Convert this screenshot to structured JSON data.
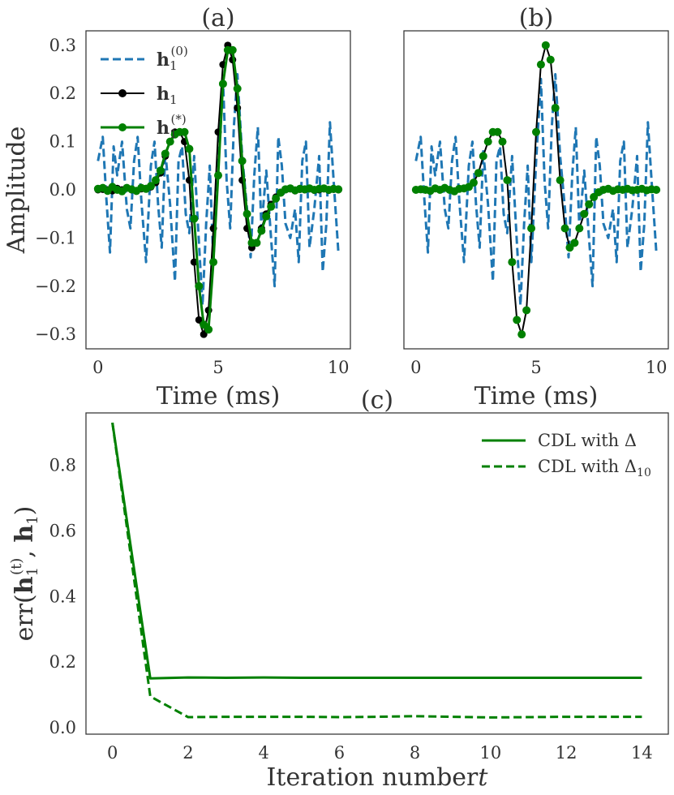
{
  "colors": {
    "initial": "#1f77b4",
    "true": "#000000",
    "estimate": "#008000",
    "cdl": "#008000",
    "axis": "#333333"
  },
  "chart_data": [
    {
      "id": "a",
      "type": "line",
      "title": "(a)",
      "xlabel": "Time (ms)",
      "ylabel": "Amplitude",
      "xlim": [
        -0.5,
        10.5
      ],
      "ylim": [
        -0.33,
        0.33
      ],
      "xticks": [
        0,
        5,
        10
      ],
      "xtick_labels": [
        "0",
        "5",
        "10"
      ],
      "yticks": [
        -0.3,
        -0.2,
        -0.1,
        0.0,
        0.1,
        0.2,
        0.3
      ],
      "ytick_labels": [
        "−0.3",
        "−0.2",
        "−0.1",
        "0.0",
        "0.1",
        "0.2",
        "0.3"
      ],
      "legend": {
        "location": "upper-left",
        "entries": [
          {
            "base": "h",
            "sub": "1",
            "sup": "(0)",
            "series": "initial"
          },
          {
            "base": "h",
            "sub": "1",
            "sup": "",
            "series": "true"
          },
          {
            "base": "h",
            "sub": "1",
            "sup": "(*)",
            "series": "estimate"
          }
        ]
      },
      "series": [
        {
          "name": "initial",
          "style": "dashed",
          "color": "#1f77b4",
          "markers": false,
          "x": [
            0,
            0.2,
            0.35,
            0.5,
            0.65,
            0.8,
            1.0,
            1.2,
            1.35,
            1.5,
            1.65,
            1.8,
            2.0,
            2.2,
            2.35,
            2.5,
            2.65,
            2.8,
            3.0,
            3.2,
            3.35,
            3.5,
            3.65,
            3.8,
            4.0,
            4.2,
            4.35,
            4.5,
            4.65,
            4.8,
            5.0,
            5.2,
            5.35,
            5.5,
            5.65,
            5.8,
            6.0,
            6.2,
            6.35,
            6.5,
            6.65,
            6.8,
            7.0,
            7.2,
            7.35,
            7.5,
            7.65,
            7.8,
            8.0,
            8.2,
            8.35,
            8.5,
            8.65,
            8.8,
            9.0,
            9.2,
            9.35,
            9.5,
            9.65,
            9.8,
            10.0
          ],
          "y": [
            0.06,
            0.11,
            -0.02,
            -0.13,
            0.09,
            0.03,
            0.1,
            -0.04,
            -0.08,
            0.06,
            0.11,
            -0.02,
            -0.15,
            0.05,
            0.1,
            -0.03,
            -0.12,
            0.08,
            -0.03,
            -0.19,
            0.06,
            0.09,
            -0.05,
            -0.09,
            0.07,
            -0.11,
            -0.24,
            -0.07,
            0.05,
            -0.15,
            0.06,
            0.23,
            0.02,
            -0.08,
            0.13,
            0.24,
            0.07,
            -0.04,
            -0.14,
            0.03,
            0.13,
            -0.08,
            0.04,
            -0.1,
            -0.2,
            0.11,
            0.05,
            -0.07,
            -0.1,
            -0.04,
            -0.15,
            0.06,
            0.1,
            -0.12,
            -0.04,
            0.07,
            -0.17,
            -0.07,
            0.14,
            0.02,
            -0.13
          ]
        },
        {
          "name": "true",
          "style": "solid",
          "color": "#000000",
          "markers": true,
          "x": [
            0,
            0.2,
            0.4,
            0.6,
            0.8,
            1.0,
            1.2,
            1.4,
            1.6,
            1.8,
            2.0,
            2.2,
            2.4,
            2.6,
            2.8,
            3.0,
            3.2,
            3.4,
            3.6,
            3.8,
            4.0,
            4.2,
            4.4,
            4.6,
            4.8,
            5.0,
            5.2,
            5.4,
            5.6,
            5.8,
            6.0,
            6.2,
            6.4,
            6.6,
            6.8,
            7.0,
            7.2,
            7.4,
            7.6,
            7.8,
            8.0,
            8.2,
            8.4,
            8.6,
            8.8,
            9.0,
            9.2,
            9.4,
            9.6,
            9.8,
            10.0
          ],
          "y": [
            0.0,
            0.001,
            0.0,
            -0.002,
            0.003,
            0.0,
            0.004,
            0.0,
            -0.003,
            0.002,
            0.003,
            0.006,
            0.015,
            0.035,
            0.07,
            0.1,
            0.12,
            0.12,
            0.1,
            0.02,
            -0.15,
            -0.27,
            -0.3,
            -0.25,
            -0.08,
            0.12,
            0.26,
            0.3,
            0.27,
            0.17,
            0.02,
            -0.08,
            -0.12,
            -0.11,
            -0.08,
            -0.05,
            -0.03,
            -0.015,
            -0.005,
            0.0,
            0.002,
            -0.002,
            0.001,
            0.0,
            0.002,
            -0.001,
            0.0,
            0.002,
            -0.001,
            0.001,
            0.0
          ]
        },
        {
          "name": "estimate",
          "style": "solid",
          "color": "#008000",
          "markers": true,
          "x": [
            0,
            0.2,
            0.4,
            0.6,
            0.8,
            1.0,
            1.2,
            1.4,
            1.6,
            1.8,
            2.0,
            2.2,
            2.4,
            2.6,
            2.8,
            3.0,
            3.2,
            3.4,
            3.6,
            3.8,
            4.0,
            4.2,
            4.4,
            4.6,
            4.8,
            5.0,
            5.2,
            5.4,
            5.6,
            5.8,
            6.0,
            6.2,
            6.4,
            6.6,
            6.8,
            7.0,
            7.2,
            7.4,
            7.6,
            7.8,
            8.0,
            8.2,
            8.4,
            8.6,
            8.8,
            9.0,
            9.2,
            9.4,
            9.6,
            9.8,
            10.0
          ],
          "y": [
            0.002,
            0.004,
            -0.002,
            0.006,
            0.0,
            -0.003,
            0.004,
            0.001,
            -0.002,
            0.004,
            0.002,
            0.008,
            0.02,
            0.04,
            0.075,
            0.1,
            0.115,
            0.12,
            0.12,
            0.085,
            -0.06,
            -0.2,
            -0.28,
            -0.29,
            -0.15,
            0.03,
            0.22,
            0.29,
            0.29,
            0.21,
            0.06,
            -0.05,
            -0.11,
            -0.11,
            -0.085,
            -0.055,
            -0.035,
            -0.018,
            -0.006,
            0.001,
            0.003,
            -0.001,
            0.002,
            0.001,
            0.003,
            0.0,
            0.002,
            0.003,
            0.0,
            0.002,
            0.001
          ]
        }
      ]
    },
    {
      "id": "b",
      "type": "line",
      "title": "(b)",
      "xlabel": "Time (ms)",
      "ylabel": "",
      "xlim": [
        -0.5,
        10.5
      ],
      "ylim": [
        -0.33,
        0.33
      ],
      "xticks": [
        0,
        5,
        10
      ],
      "xtick_labels": [
        "0",
        "5",
        "10"
      ],
      "yticks": [],
      "ytick_labels": [],
      "series": [
        {
          "name": "initial",
          "style": "dashed",
          "color": "#1f77b4",
          "markers": false,
          "x": [
            0,
            0.2,
            0.35,
            0.5,
            0.65,
            0.8,
            1.0,
            1.2,
            1.35,
            1.5,
            1.65,
            1.8,
            2.0,
            2.2,
            2.35,
            2.5,
            2.65,
            2.8,
            3.0,
            3.2,
            3.35,
            3.5,
            3.65,
            3.8,
            4.0,
            4.2,
            4.35,
            4.5,
            4.65,
            4.8,
            5.0,
            5.2,
            5.35,
            5.5,
            5.65,
            5.8,
            6.0,
            6.2,
            6.35,
            6.5,
            6.65,
            6.8,
            7.0,
            7.2,
            7.35,
            7.5,
            7.65,
            7.8,
            8.0,
            8.2,
            8.35,
            8.5,
            8.65,
            8.8,
            9.0,
            9.2,
            9.35,
            9.5,
            9.65,
            9.8,
            10.0
          ],
          "y": [
            0.06,
            0.11,
            -0.02,
            -0.13,
            0.09,
            0.03,
            0.1,
            -0.04,
            -0.08,
            0.06,
            0.11,
            -0.02,
            -0.15,
            0.05,
            0.1,
            -0.03,
            -0.12,
            0.08,
            -0.03,
            -0.19,
            0.06,
            0.09,
            -0.05,
            -0.09,
            0.07,
            -0.11,
            -0.24,
            -0.07,
            0.05,
            -0.15,
            0.06,
            0.23,
            0.02,
            -0.08,
            0.13,
            0.24,
            0.07,
            -0.04,
            -0.14,
            0.03,
            0.13,
            -0.08,
            0.04,
            -0.1,
            -0.2,
            0.11,
            0.05,
            -0.07,
            -0.1,
            -0.04,
            -0.15,
            0.06,
            0.1,
            -0.12,
            -0.04,
            0.07,
            -0.17,
            -0.07,
            0.14,
            0.02,
            -0.13
          ]
        },
        {
          "name": "true",
          "style": "solid",
          "color": "#000000",
          "markers": false,
          "x": [
            0,
            0.2,
            0.4,
            0.6,
            0.8,
            1.0,
            1.2,
            1.4,
            1.6,
            1.8,
            2.0,
            2.2,
            2.4,
            2.6,
            2.8,
            3.0,
            3.2,
            3.4,
            3.6,
            3.8,
            4.0,
            4.2,
            4.4,
            4.6,
            4.8,
            5.0,
            5.2,
            5.4,
            5.6,
            5.8,
            6.0,
            6.2,
            6.4,
            6.6,
            6.8,
            7.0,
            7.2,
            7.4,
            7.6,
            7.8,
            8.0,
            8.2,
            8.4,
            8.6,
            8.8,
            9.0,
            9.2,
            9.4,
            9.6,
            9.8,
            10.0
          ],
          "y": [
            0.0,
            0.001,
            0.0,
            -0.002,
            0.003,
            0.0,
            0.004,
            0.0,
            -0.003,
            0.002,
            0.003,
            0.006,
            0.015,
            0.035,
            0.07,
            0.1,
            0.12,
            0.12,
            0.1,
            0.02,
            -0.15,
            -0.27,
            -0.3,
            -0.25,
            -0.08,
            0.12,
            0.26,
            0.3,
            0.27,
            0.17,
            0.02,
            -0.08,
            -0.12,
            -0.11,
            -0.08,
            -0.05,
            -0.03,
            -0.015,
            -0.005,
            0.0,
            0.002,
            -0.002,
            0.001,
            0.0,
            0.002,
            -0.001,
            0.0,
            0.002,
            -0.001,
            0.001,
            0.0
          ]
        },
        {
          "name": "estimate",
          "style": "none",
          "color": "#008000",
          "markers": true,
          "x": [
            0,
            0.2,
            0.4,
            0.6,
            0.8,
            1.0,
            1.2,
            1.4,
            1.6,
            1.8,
            2.0,
            2.2,
            2.4,
            2.6,
            2.8,
            3.0,
            3.2,
            3.4,
            3.6,
            3.8,
            4.0,
            4.2,
            4.4,
            4.6,
            4.8,
            5.0,
            5.2,
            5.4,
            5.6,
            5.8,
            6.0,
            6.2,
            6.4,
            6.6,
            6.8,
            7.0,
            7.2,
            7.4,
            7.6,
            7.8,
            8.0,
            8.2,
            8.4,
            8.6,
            8.8,
            9.0,
            9.2,
            9.4,
            9.6,
            9.8,
            10.0
          ],
          "y": [
            0.0,
            0.001,
            0.0,
            -0.002,
            0.003,
            0.0,
            0.004,
            0.0,
            -0.003,
            0.002,
            0.003,
            0.006,
            0.015,
            0.035,
            0.07,
            0.1,
            0.12,
            0.12,
            0.1,
            0.02,
            -0.15,
            -0.27,
            -0.3,
            -0.25,
            -0.08,
            0.12,
            0.26,
            0.3,
            0.27,
            0.17,
            0.02,
            -0.08,
            -0.12,
            -0.11,
            -0.08,
            -0.05,
            -0.03,
            -0.015,
            -0.005,
            0.0,
            0.002,
            -0.002,
            0.001,
            0.0,
            0.002,
            -0.001,
            0.0,
            0.002,
            -0.001,
            0.001,
            0.0
          ]
        }
      ]
    },
    {
      "id": "c",
      "type": "line",
      "title": "(c)",
      "xlabel_text": "Iteration number",
      "xlabel_var": "t",
      "ylabel": {
        "prefix": "err(",
        "base1": "h",
        "sub1": "1",
        "sup1": "(t)",
        "sep": ", ",
        "base2": "h",
        "sub2": "1",
        "suffix": ")"
      },
      "xlim": [
        -0.7,
        14.7
      ],
      "ylim": [
        -0.02,
        0.96
      ],
      "xticks": [
        0,
        2,
        4,
        6,
        8,
        10,
        12,
        14
      ],
      "xtick_labels": [
        "0",
        "2",
        "4",
        "6",
        "8",
        "10",
        "12",
        "14"
      ],
      "yticks": [
        0.0,
        0.2,
        0.4,
        0.6,
        0.8
      ],
      "ytick_labels": [
        "0.0",
        "0.2",
        "0.4",
        "0.6",
        "0.8"
      ],
      "legend": {
        "location": "upper-right",
        "entries": [
          {
            "text": "CDL with Δ",
            "sub": "",
            "series": "cdl_delta"
          },
          {
            "text": "CDL with Δ",
            "sub": "10",
            "series": "cdl_delta10"
          }
        ]
      },
      "series": [
        {
          "name": "cdl_delta",
          "style": "solid",
          "color": "#008000",
          "markers": false,
          "x": [
            0,
            1,
            2,
            3,
            4,
            5,
            6,
            7,
            8,
            9,
            10,
            11,
            12,
            13,
            14
          ],
          "y": [
            0.93,
            0.15,
            0.153,
            0.152,
            0.153,
            0.152,
            0.152,
            0.152,
            0.152,
            0.152,
            0.152,
            0.152,
            0.152,
            0.152,
            0.152
          ]
        },
        {
          "name": "cdl_delta10",
          "style": "dashed",
          "color": "#008000",
          "markers": false,
          "x": [
            0,
            1,
            2,
            3,
            4,
            5,
            6,
            7,
            8,
            9,
            10,
            11,
            12,
            13,
            14
          ],
          "y": [
            0.93,
            0.095,
            0.032,
            0.033,
            0.033,
            0.033,
            0.032,
            0.033,
            0.035,
            0.033,
            0.031,
            0.032,
            0.033,
            0.033,
            0.033
          ]
        }
      ]
    }
  ]
}
